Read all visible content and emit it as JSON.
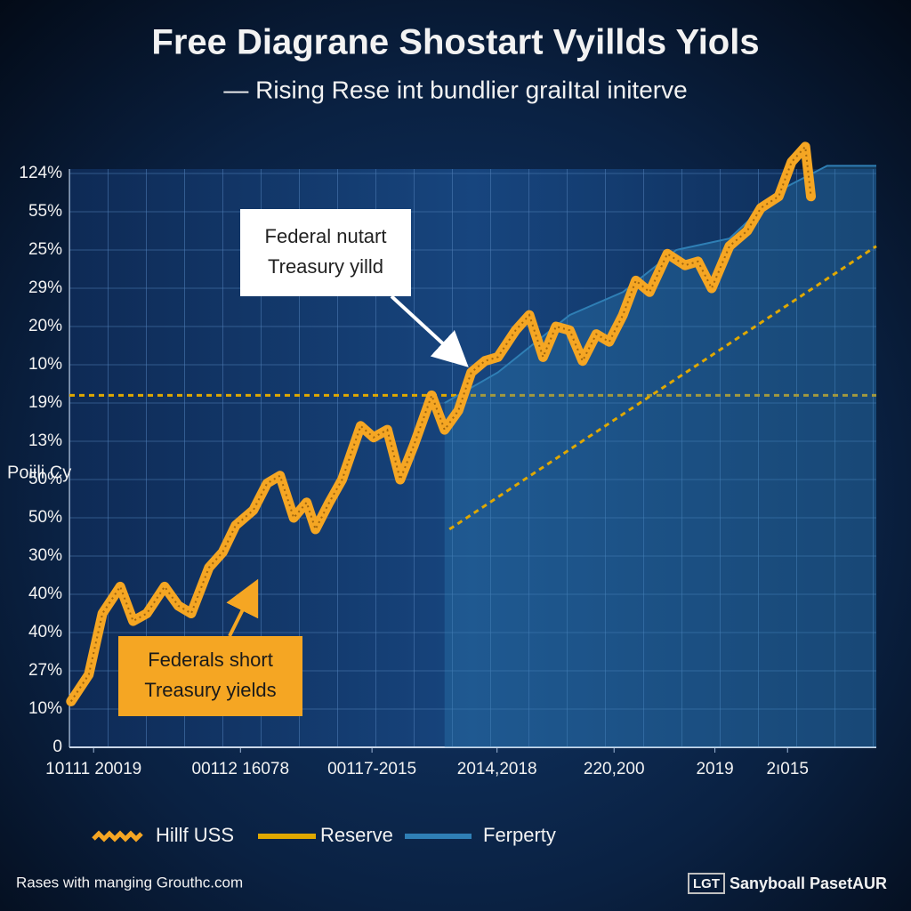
{
  "chart_data": {
    "type": "line",
    "title": "Free Diagrane Shostart Vyillds Yiols",
    "subtitle": "— Rising Rese int bundlier graiItal initerve",
    "y_axis_label": "Poiili Cy",
    "xlim": [
      0,
      100
    ],
    "xticks": [
      {
        "value": 3,
        "label": "10111 20019"
      },
      {
        "value": 21.2,
        "label": "00112 16078"
      },
      {
        "value": 37.5,
        "label": "00117-2015"
      },
      {
        "value": 53,
        "label": "2014,2018"
      },
      {
        "value": 67.5,
        "label": "220,200"
      },
      {
        "value": 80,
        "label": "2019"
      },
      {
        "value": 89,
        "label": "2ı015"
      }
    ],
    "ylim": [
      0,
      15
    ],
    "yticks": [
      {
        "value": 0,
        "label": "0"
      },
      {
        "value": 1,
        "label": "10%"
      },
      {
        "value": 2,
        "label": "27%"
      },
      {
        "value": 3,
        "label": "40%"
      },
      {
        "value": 4,
        "label": "40%"
      },
      {
        "value": 5,
        "label": "30%"
      },
      {
        "value": 6,
        "label": "50%"
      },
      {
        "value": 7,
        "label": "50%"
      },
      {
        "value": 8,
        "label": "13%"
      },
      {
        "value": 9,
        "label": "19%"
      },
      {
        "value": 10,
        "label": "10%"
      },
      {
        "value": 11,
        "label": "20%"
      },
      {
        "value": 12,
        "label": "29%"
      },
      {
        "value": 13,
        "label": "25%"
      },
      {
        "value": 14,
        "label": "55%"
      },
      {
        "value": 15,
        "label": "124%"
      }
    ],
    "grid": true,
    "series": [
      {
        "name": "Ferperty",
        "type": "area",
        "color": "#2f7fb5",
        "x": [
          46.5,
          53.1,
          62,
          68.6,
          75.2,
          81.8,
          88.4,
          93.9,
          100
        ],
        "values": [
          9.0,
          9.8,
          11.3,
          11.9,
          13.0,
          13.3,
          14.6,
          15.2,
          15.2
        ]
      },
      {
        "name": "Hillf USS",
        "type": "line",
        "color": "#f5a623",
        "x": [
          0.2,
          2.4,
          4.1,
          6.3,
          7.9,
          9.6,
          11.8,
          13.5,
          15.1,
          17.3,
          19.0,
          20.6,
          22.8,
          24.5,
          26.1,
          27.8,
          29.4,
          30.5,
          32.2,
          33.8,
          36.1,
          37.7,
          39.4,
          41.0,
          42.7,
          44.9,
          46.5,
          48.2,
          49.8,
          51.5,
          53.1,
          55.3,
          57.0,
          58.7,
          60.3,
          62.0,
          63.6,
          65.3,
          66.9,
          68.6,
          70.2,
          71.9,
          74.1,
          76.3,
          77.9,
          79.6,
          81.8,
          84.0,
          85.7,
          87.9,
          89.5,
          91.2,
          91.9
        ],
        "values": [
          1.2,
          1.9,
          3.5,
          4.2,
          3.3,
          3.5,
          4.2,
          3.7,
          3.5,
          4.7,
          5.1,
          5.8,
          6.2,
          6.9,
          7.1,
          6.0,
          6.4,
          5.7,
          6.4,
          7.0,
          8.4,
          8.1,
          8.3,
          7.0,
          7.9,
          9.2,
          8.3,
          8.8,
          9.8,
          10.1,
          10.2,
          10.9,
          11.3,
          10.2,
          11.0,
          10.9,
          10.1,
          10.8,
          10.6,
          11.3,
          12.2,
          11.9,
          12.9,
          12.6,
          12.7,
          12.0,
          13.1,
          13.5,
          14.1,
          14.4,
          15.3,
          15.7,
          14.4
        ]
      },
      {
        "name": "Reserve",
        "type": "line",
        "style": "dashed",
        "color": "#e0a800",
        "x": [
          47.1,
          100
        ],
        "values": [
          5.7,
          13.1
        ]
      }
    ],
    "hline": {
      "value": 9.2,
      "color": "#e0a800"
    },
    "annotations": [
      {
        "text": [
          "Federal nutart",
          "Treasury yilld"
        ]
      },
      {
        "text": [
          "Federals short",
          "Treasury yields"
        ]
      }
    ],
    "footer_left": "Rases with manging Grouthc.com",
    "footer_logo": "LGT",
    "footer_right": "Sanyboall PasetAUR"
  }
}
